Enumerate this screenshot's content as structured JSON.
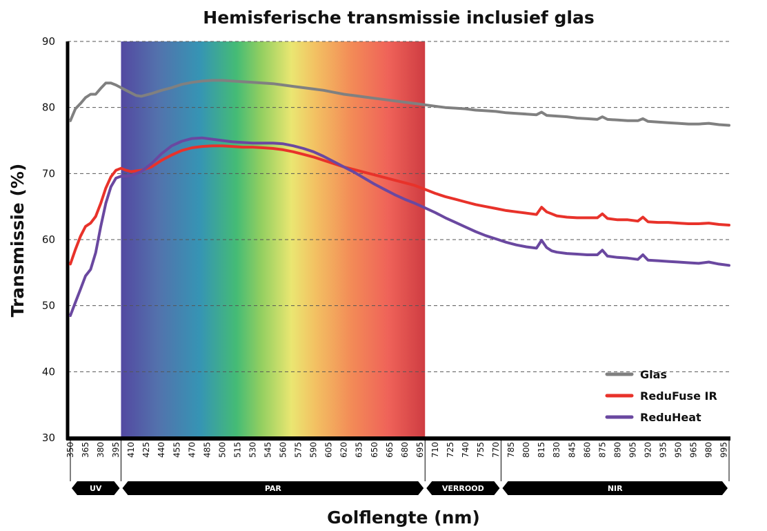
{
  "chart_data": {
    "type": "line",
    "title": "Hemisferische transmissie inclusief glas",
    "xlabel": "Golflengte (nm)",
    "ylabel": "Transmissie (%)",
    "xlim": [
      350,
      1000
    ],
    "ylim": [
      30,
      90
    ],
    "yticks": [
      30,
      40,
      50,
      60,
      70,
      80,
      90
    ],
    "xticks": [
      350,
      365,
      380,
      395,
      410,
      425,
      440,
      455,
      470,
      485,
      500,
      515,
      530,
      545,
      560,
      575,
      590,
      605,
      620,
      635,
      650,
      665,
      680,
      695,
      710,
      725,
      740,
      755,
      770,
      785,
      800,
      815,
      830,
      845,
      860,
      875,
      890,
      905,
      920,
      935,
      950,
      965,
      980,
      995
    ],
    "grid": "horizontal dashed",
    "legend_position": "bottom-right",
    "bands": [
      {
        "label": "UV",
        "start": 350,
        "end": 400
      },
      {
        "label": "PAR",
        "start": 400,
        "end": 700
      },
      {
        "label": "VERROOD",
        "start": 700,
        "end": 775
      },
      {
        "label": "NIR",
        "start": 775,
        "end": 1000
      }
    ],
    "spectrum_range": [
      400,
      700
    ],
    "series": [
      {
        "name": "Glas",
        "color": "#808080",
        "points": [
          [
            350,
            78.0
          ],
          [
            355,
            79.8
          ],
          [
            360,
            80.6
          ],
          [
            365,
            81.5
          ],
          [
            370,
            82.0
          ],
          [
            375,
            82.0
          ],
          [
            380,
            82.9
          ],
          [
            385,
            83.7
          ],
          [
            390,
            83.7
          ],
          [
            395,
            83.4
          ],
          [
            400,
            83.0
          ],
          [
            405,
            82.6
          ],
          [
            410,
            82.2
          ],
          [
            415,
            81.8
          ],
          [
            420,
            81.7
          ],
          [
            430,
            82.1
          ],
          [
            440,
            82.6
          ],
          [
            450,
            83.0
          ],
          [
            460,
            83.5
          ],
          [
            470,
            83.8
          ],
          [
            480,
            84.0
          ],
          [
            490,
            84.1
          ],
          [
            500,
            84.1
          ],
          [
            510,
            84.0
          ],
          [
            520,
            83.9
          ],
          [
            530,
            83.8
          ],
          [
            540,
            83.7
          ],
          [
            550,
            83.6
          ],
          [
            560,
            83.4
          ],
          [
            570,
            83.2
          ],
          [
            580,
            83.0
          ],
          [
            590,
            82.8
          ],
          [
            600,
            82.6
          ],
          [
            610,
            82.3
          ],
          [
            620,
            82.0
          ],
          [
            630,
            81.8
          ],
          [
            640,
            81.6
          ],
          [
            650,
            81.4
          ],
          [
            660,
            81.2
          ],
          [
            670,
            81.0
          ],
          [
            680,
            80.8
          ],
          [
            690,
            80.6
          ],
          [
            700,
            80.4
          ],
          [
            710,
            80.2
          ],
          [
            720,
            80.0
          ],
          [
            730,
            79.9
          ],
          [
            740,
            79.8
          ],
          [
            750,
            79.6
          ],
          [
            760,
            79.5
          ],
          [
            770,
            79.4
          ],
          [
            780,
            79.2
          ],
          [
            790,
            79.1
          ],
          [
            800,
            79.0
          ],
          [
            810,
            78.9
          ],
          [
            815,
            79.3
          ],
          [
            820,
            78.8
          ],
          [
            830,
            78.7
          ],
          [
            840,
            78.6
          ],
          [
            850,
            78.4
          ],
          [
            860,
            78.3
          ],
          [
            870,
            78.2
          ],
          [
            875,
            78.6
          ],
          [
            880,
            78.2
          ],
          [
            890,
            78.1
          ],
          [
            900,
            78.0
          ],
          [
            910,
            78.0
          ],
          [
            915,
            78.3
          ],
          [
            920,
            77.9
          ],
          [
            930,
            77.8
          ],
          [
            940,
            77.7
          ],
          [
            950,
            77.6
          ],
          [
            960,
            77.5
          ],
          [
            970,
            77.5
          ],
          [
            980,
            77.6
          ],
          [
            990,
            77.4
          ],
          [
            1000,
            77.3
          ]
        ]
      },
      {
        "name": "ReduFuse IR",
        "color": "#e8322a",
        "points": [
          [
            350,
            56.3
          ],
          [
            355,
            58.5
          ],
          [
            360,
            60.5
          ],
          [
            365,
            62.0
          ],
          [
            370,
            62.5
          ],
          [
            375,
            63.5
          ],
          [
            380,
            65.5
          ],
          [
            385,
            67.8
          ],
          [
            390,
            69.5
          ],
          [
            395,
            70.5
          ],
          [
            400,
            70.8
          ],
          [
            405,
            70.5
          ],
          [
            410,
            70.3
          ],
          [
            415,
            70.4
          ],
          [
            420,
            70.5
          ],
          [
            430,
            71.0
          ],
          [
            440,
            72.0
          ],
          [
            450,
            72.8
          ],
          [
            460,
            73.5
          ],
          [
            470,
            73.9
          ],
          [
            480,
            74.1
          ],
          [
            490,
            74.2
          ],
          [
            500,
            74.2
          ],
          [
            510,
            74.1
          ],
          [
            520,
            74.0
          ],
          [
            530,
            74.0
          ],
          [
            540,
            73.9
          ],
          [
            550,
            73.8
          ],
          [
            560,
            73.6
          ],
          [
            570,
            73.3
          ],
          [
            580,
            72.9
          ],
          [
            590,
            72.5
          ],
          [
            600,
            72.0
          ],
          [
            610,
            71.5
          ],
          [
            620,
            71.0
          ],
          [
            630,
            70.6
          ],
          [
            640,
            70.2
          ],
          [
            650,
            69.8
          ],
          [
            660,
            69.4
          ],
          [
            670,
            69.0
          ],
          [
            680,
            68.6
          ],
          [
            690,
            68.2
          ],
          [
            700,
            67.6
          ],
          [
            710,
            67.0
          ],
          [
            720,
            66.5
          ],
          [
            730,
            66.1
          ],
          [
            740,
            65.7
          ],
          [
            750,
            65.3
          ],
          [
            760,
            65.0
          ],
          [
            770,
            64.7
          ],
          [
            780,
            64.4
          ],
          [
            790,
            64.2
          ],
          [
            800,
            64.0
          ],
          [
            810,
            63.8
          ],
          [
            815,
            64.9
          ],
          [
            820,
            64.2
          ],
          [
            825,
            63.9
          ],
          [
            830,
            63.6
          ],
          [
            840,
            63.4
          ],
          [
            850,
            63.3
          ],
          [
            860,
            63.3
          ],
          [
            870,
            63.3
          ],
          [
            875,
            63.9
          ],
          [
            880,
            63.2
          ],
          [
            890,
            63.0
          ],
          [
            900,
            63.0
          ],
          [
            910,
            62.8
          ],
          [
            915,
            63.4
          ],
          [
            920,
            62.7
          ],
          [
            930,
            62.6
          ],
          [
            940,
            62.6
          ],
          [
            950,
            62.5
          ],
          [
            960,
            62.4
          ],
          [
            970,
            62.4
          ],
          [
            980,
            62.5
          ],
          [
            990,
            62.3
          ],
          [
            1000,
            62.2
          ]
        ]
      },
      {
        "name": "ReduHeat",
        "color": "#6a48a0",
        "points": [
          [
            350,
            48.5
          ],
          [
            355,
            50.5
          ],
          [
            360,
            52.5
          ],
          [
            365,
            54.5
          ],
          [
            370,
            55.5
          ],
          [
            375,
            58.0
          ],
          [
            380,
            62.0
          ],
          [
            385,
            65.5
          ],
          [
            390,
            68.0
          ],
          [
            395,
            69.3
          ],
          [
            400,
            69.6
          ],
          [
            405,
            69.6
          ],
          [
            410,
            69.7
          ],
          [
            415,
            70.0
          ],
          [
            420,
            70.3
          ],
          [
            430,
            71.5
          ],
          [
            440,
            73.0
          ],
          [
            450,
            74.2
          ],
          [
            460,
            74.9
          ],
          [
            470,
            75.3
          ],
          [
            480,
            75.4
          ],
          [
            490,
            75.2
          ],
          [
            500,
            75.0
          ],
          [
            510,
            74.8
          ],
          [
            520,
            74.7
          ],
          [
            530,
            74.6
          ],
          [
            540,
            74.6
          ],
          [
            550,
            74.6
          ],
          [
            560,
            74.5
          ],
          [
            570,
            74.2
          ],
          [
            580,
            73.8
          ],
          [
            590,
            73.3
          ],
          [
            600,
            72.6
          ],
          [
            610,
            71.8
          ],
          [
            620,
            71.0
          ],
          [
            630,
            70.2
          ],
          [
            640,
            69.3
          ],
          [
            650,
            68.4
          ],
          [
            660,
            67.6
          ],
          [
            670,
            66.8
          ],
          [
            680,
            66.1
          ],
          [
            690,
            65.5
          ],
          [
            700,
            64.8
          ],
          [
            710,
            64.1
          ],
          [
            720,
            63.3
          ],
          [
            730,
            62.6
          ],
          [
            740,
            61.9
          ],
          [
            750,
            61.2
          ],
          [
            760,
            60.6
          ],
          [
            770,
            60.1
          ],
          [
            780,
            59.6
          ],
          [
            790,
            59.2
          ],
          [
            800,
            58.9
          ],
          [
            810,
            58.7
          ],
          [
            815,
            59.9
          ],
          [
            820,
            58.8
          ],
          [
            825,
            58.3
          ],
          [
            830,
            58.1
          ],
          [
            840,
            57.9
          ],
          [
            850,
            57.8
          ],
          [
            860,
            57.7
          ],
          [
            870,
            57.7
          ],
          [
            875,
            58.4
          ],
          [
            880,
            57.5
          ],
          [
            890,
            57.3
          ],
          [
            900,
            57.2
          ],
          [
            910,
            57.0
          ],
          [
            915,
            57.7
          ],
          [
            920,
            56.9
          ],
          [
            930,
            56.8
          ],
          [
            940,
            56.7
          ],
          [
            950,
            56.6
          ],
          [
            960,
            56.5
          ],
          [
            970,
            56.4
          ],
          [
            980,
            56.6
          ],
          [
            990,
            56.3
          ],
          [
            1000,
            56.1
          ]
        ]
      }
    ]
  }
}
